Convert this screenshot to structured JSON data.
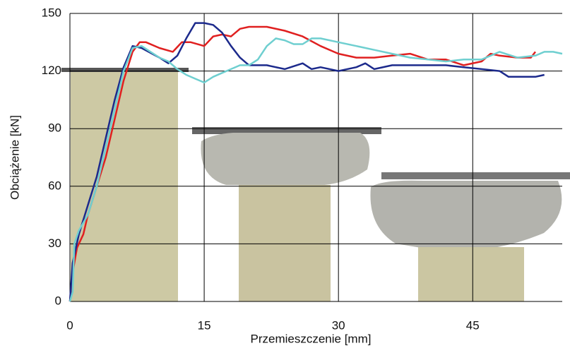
{
  "chart_data": {
    "type": "line",
    "x_label": "Przemieszczenie [mm]",
    "y_label": "Obciążenie [kN]",
    "xlim": [
      0,
      55
    ],
    "ylim": [
      0,
      150
    ],
    "xticks": [
      0,
      15,
      30,
      45
    ],
    "yticks": [
      0,
      30,
      60,
      90,
      120,
      150
    ],
    "grid": true,
    "series": [
      {
        "color": "#e02020",
        "x": [
          0,
          0.3,
          0.8,
          1.5,
          2,
          3,
          4,
          5,
          6,
          7,
          7.8,
          8.5,
          10,
          11.5,
          12.5,
          13.5,
          15,
          16,
          17,
          18,
          19,
          20,
          22,
          24,
          26,
          28,
          30,
          32,
          34,
          36,
          38,
          40,
          42,
          44,
          46,
          47,
          48,
          50,
          51.5,
          52
        ],
        "values": [
          0,
          15,
          28,
          35,
          45,
          60,
          75,
          95,
          115,
          130,
          135,
          135,
          132,
          130,
          135,
          135,
          133,
          138,
          139,
          138,
          142,
          143,
          143,
          141,
          138,
          133,
          129,
          127,
          127,
          128,
          129,
          126,
          126,
          123,
          125,
          129,
          128,
          127,
          127,
          130
        ]
      },
      {
        "color": "#1c2a8c",
        "x": [
          0,
          0.3,
          1,
          2,
          3,
          4,
          5,
          6,
          7,
          8,
          10,
          11,
          12,
          13,
          14,
          15,
          16,
          17,
          18,
          19,
          20,
          22,
          24,
          26,
          27,
          28,
          30,
          32,
          33,
          34,
          36,
          38,
          40,
          42,
          44,
          46,
          48,
          49,
          52,
          53
        ],
        "values": [
          0,
          20,
          35,
          50,
          65,
          85,
          105,
          122,
          133,
          132,
          127,
          124,
          128,
          137,
          145,
          145,
          144,
          140,
          133,
          127,
          123,
          123,
          121,
          124,
          121,
          122,
          120,
          122,
          124,
          121,
          123,
          123,
          123,
          123,
          122,
          121,
          120,
          117,
          117,
          118
        ]
      },
      {
        "color": "#6fcfd0",
        "x": [
          0,
          0.3,
          0.5,
          1,
          2,
          3,
          4,
          5,
          6,
          7,
          8,
          9,
          10,
          11,
          12,
          13,
          14,
          15,
          16,
          17,
          18,
          19,
          20,
          21,
          22,
          23,
          24,
          25,
          26,
          27,
          28,
          30,
          32,
          34,
          36,
          38,
          40,
          42,
          44,
          46,
          48,
          50,
          52,
          53,
          54,
          55
        ],
        "values": [
          0,
          5,
          30,
          37,
          45,
          60,
          80,
          100,
          120,
          132,
          133,
          130,
          127,
          125,
          121,
          118,
          116,
          114,
          117,
          119,
          121,
          123,
          123,
          126,
          133,
          137,
          136,
          134,
          134,
          137,
          137,
          135,
          133,
          131,
          129,
          127,
          126,
          125,
          126,
          126,
          130,
          127,
          128,
          130,
          130,
          129
        ]
      }
    ]
  }
}
